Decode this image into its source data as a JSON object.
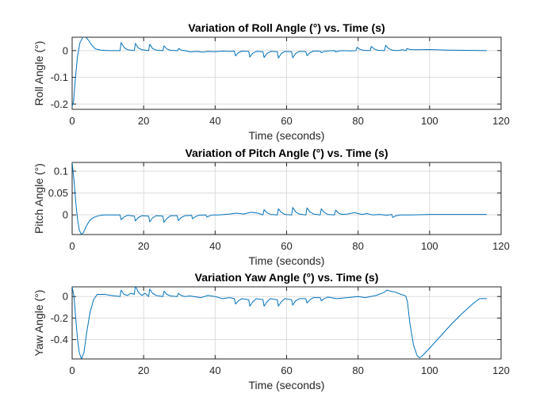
{
  "chart_data": [
    {
      "type": "line",
      "title": "Variation of Roll Angle (°) vs. Time (s)",
      "xlabel": "Time (seconds)",
      "ylabel": "Roll Angle (°)",
      "xlim": [
        0,
        120
      ],
      "ylim": [
        -0.22,
        0.05
      ],
      "xticks": [
        0,
        20,
        40,
        60,
        80,
        100,
        120
      ],
      "xtick_labels": [
        "0",
        "20",
        "40",
        "60",
        "80",
        "100",
        "120"
      ],
      "yticks": [
        -0.2,
        -0.1,
        0
      ],
      "ytick_labels": [
        "-0.2",
        "-0.1",
        "0"
      ],
      "grid": true,
      "color": "#0072BD",
      "series": [
        {
          "x": [
            0,
            0.4,
            0.8,
            1.5,
            2.2,
            3,
            3.6,
            4.5,
            5.5,
            6.5,
            8,
            10,
            13.4,
            13.7,
            14.5,
            15.5,
            17.4,
            17.7,
            18.5,
            19.5,
            21.4,
            21.7,
            22.5,
            23.5,
            25.4,
            25.7,
            26.5,
            27.5,
            29.5,
            29.8,
            30.5,
            31.5,
            33,
            35,
            36.5,
            38,
            40,
            42,
            44,
            45.4,
            45.7,
            46.5,
            47.5,
            49.4,
            49.7,
            50.5,
            51.5,
            53.4,
            53.7,
            54.5,
            55.5,
            57.4,
            57.7,
            58.5,
            59.5,
            61.4,
            61.7,
            62.5,
            63.5,
            65.4,
            65.7,
            66.5,
            67.5,
            69.4,
            69.7,
            70.5,
            71.5,
            73.4,
            73.7,
            74.5,
            75.5,
            78,
            79.4,
            79.7,
            80.5,
            81.5,
            83.4,
            83.7,
            84.5,
            85.5,
            87.4,
            87.7,
            88.5,
            89.5,
            91,
            92.5,
            93.4,
            93.7,
            94.5,
            96,
            100,
            105,
            110,
            116
          ],
          "y": [
            -0.21,
            -0.19,
            -0.12,
            -0.02,
            0.03,
            0.05,
            0.053,
            0.04,
            0.02,
            0.006,
            0.002,
            0,
            0,
            0.03,
            0.012,
            0.003,
            0,
            0.027,
            0.01,
            0.003,
            0,
            0.024,
            0.008,
            0.002,
            0,
            0.018,
            0.006,
            0.001,
            0,
            0.008,
            0.002,
            0,
            -0.005,
            -0.003,
            -0.006,
            -0.003,
            -0.004,
            -0.002,
            -0.003,
            -0.002,
            -0.02,
            -0.008,
            -0.002,
            -0.003,
            -0.024,
            -0.01,
            -0.003,
            -0.004,
            -0.026,
            -0.011,
            -0.003,
            -0.004,
            -0.028,
            -0.011,
            -0.003,
            -0.004,
            -0.027,
            -0.011,
            -0.003,
            -0.004,
            -0.019,
            -0.008,
            -0.002,
            -0.002,
            -0.008,
            -0.003,
            -0.001,
            0,
            -0.005,
            -0.002,
            0,
            -0.001,
            0,
            0.012,
            0.005,
            0.001,
            0,
            0.016,
            0.006,
            0.001,
            0,
            0.02,
            0.008,
            0.002,
            0,
            0.003,
            0,
            0.008,
            0.004,
            0.003,
            0.004,
            0.002,
            0.001,
            0
          ]
        }
      ]
    },
    {
      "type": "line",
      "title": "Variation of Pitch Angle (°) vs. Time (s)",
      "xlabel": "Time (seconds)",
      "ylabel": "Pitch Angle (°)",
      "xlim": [
        0,
        120
      ],
      "ylim": [
        -0.045,
        0.12
      ],
      "xticks": [
        0,
        20,
        40,
        60,
        80,
        100,
        120
      ],
      "xtick_labels": [
        "0",
        "20",
        "40",
        "60",
        "80",
        "100",
        "120"
      ],
      "yticks": [
        0,
        0.05,
        0.1
      ],
      "ytick_labels": [
        "0",
        "0.05",
        "0.1"
      ],
      "grid": true,
      "color": "#0072BD",
      "series": [
        {
          "x": [
            0,
            0.5,
            1,
            1.5,
            2,
            2.6,
            3.2,
            4,
            5,
            6,
            7,
            8,
            9,
            10,
            12,
            13.4,
            13.7,
            14.5,
            15.5,
            17.4,
            17.7,
            18.5,
            19.5,
            21.4,
            21.7,
            22.5,
            23.5,
            25.4,
            25.7,
            26.5,
            27.5,
            29.4,
            29.7,
            30.5,
            31.5,
            33.4,
            33.7,
            34.5,
            35.5,
            37.4,
            37.7,
            38.5,
            39.5,
            41,
            44,
            46,
            48,
            50,
            52,
            53.4,
            53.7,
            54.5,
            55.5,
            57.4,
            57.7,
            58.5,
            59.5,
            61.4,
            61.7,
            62.5,
            63.5,
            65.4,
            65.7,
            66.5,
            67.5,
            69.4,
            69.7,
            70.5,
            71.5,
            73.4,
            73.7,
            74.5,
            75.5,
            77,
            79,
            81,
            82.5,
            84,
            86,
            88,
            89.4,
            89.7,
            90.5,
            92,
            95,
            100,
            110,
            116
          ],
          "y": [
            0.12,
            0.08,
            0.03,
            -0.01,
            -0.035,
            -0.045,
            -0.04,
            -0.025,
            -0.012,
            -0.006,
            -0.003,
            -0.001,
            0,
            0,
            0,
            0,
            -0.011,
            -0.005,
            -0.001,
            -0.003,
            -0.014,
            -0.006,
            -0.002,
            -0.003,
            -0.016,
            -0.007,
            -0.002,
            -0.003,
            -0.017,
            -0.008,
            -0.002,
            -0.002,
            -0.013,
            -0.006,
            -0.002,
            -0.001,
            -0.009,
            -0.004,
            -0.001,
            0,
            -0.005,
            -0.002,
            0,
            0,
            0.002,
            0.004,
            0.002,
            0.006,
            0.004,
            0,
            0.012,
            0.005,
            0.001,
            0,
            0.014,
            0.006,
            0.001,
            0,
            0.017,
            0.007,
            0.002,
            0,
            0.016,
            0.007,
            0.002,
            0,
            0.014,
            0.006,
            0.001,
            0,
            0.011,
            0.004,
            0.001,
            0.002,
            0.005,
            0.001,
            0.003,
            0,
            0.001,
            -0.001,
            0.001,
            -0.006,
            -0.002,
            0,
            0,
            0.001,
            0.001,
            0.001
          ]
        }
      ]
    },
    {
      "type": "line",
      "title": "Variation Yaw Angle (°) vs. Time (s)",
      "xlabel": "Time (seconds)",
      "ylabel": "Yaw Angle (°)",
      "xlim": [
        0,
        120
      ],
      "ylim": [
        -0.58,
        0.09
      ],
      "xticks": [
        0,
        20,
        40,
        60,
        80,
        100,
        120
      ],
      "xtick_labels": [
        "0",
        "20",
        "40",
        "60",
        "80",
        "100",
        "120"
      ],
      "yticks": [
        -0.4,
        -0.2,
        0
      ],
      "ytick_labels": [
        "-0.4",
        "-0.2",
        "0"
      ],
      "grid": true,
      "color": "#0072BD",
      "series": [
        {
          "x": [
            0,
            0.5,
            1,
            1.5,
            2,
            2.6,
            3.3,
            4,
            5,
            6,
            7,
            9,
            11,
            13.4,
            13.7,
            14.5,
            15.5,
            16.4,
            17.4,
            17.7,
            18.5,
            19.5,
            20.4,
            21.4,
            21.7,
            22.5,
            23.5,
            25.4,
            25.7,
            26.5,
            27.5,
            29.4,
            29.7,
            30.5,
            31.5,
            33,
            36,
            38,
            40,
            42,
            44,
            45.4,
            45.7,
            46.5,
            47.5,
            49.4,
            49.7,
            50.5,
            51.5,
            53.4,
            53.7,
            54.5,
            55.5,
            57.4,
            57.7,
            58.5,
            59.5,
            61.4,
            61.7,
            62.5,
            63.5,
            65.4,
            65.7,
            66.5,
            67.5,
            69.4,
            69.7,
            70.5,
            71.5,
            74,
            77,
            80,
            82,
            85,
            87.4,
            88,
            89,
            90.5,
            92,
            93,
            93.4,
            93.8,
            94.5,
            95.5,
            96.5,
            97.2,
            98,
            100,
            103,
            106,
            109,
            112,
            114,
            116
          ],
          "y": [
            0.09,
            0,
            -0.2,
            -0.4,
            -0.52,
            -0.58,
            -0.52,
            -0.35,
            -0.15,
            -0.03,
            0.02,
            0.02,
            0.01,
            0,
            0.06,
            0.02,
            0.01,
            0.03,
            0.02,
            0.1,
            0.04,
            0.01,
            0.03,
            0,
            0.07,
            0.03,
            0.01,
            0,
            0.05,
            0.02,
            0.005,
            0,
            0.03,
            0.01,
            0,
            0.005,
            -0.01,
            0.01,
            0,
            -0.02,
            -0.01,
            -0.02,
            -0.07,
            -0.04,
            -0.02,
            -0.03,
            -0.09,
            -0.05,
            -0.02,
            -0.03,
            -0.09,
            -0.05,
            -0.02,
            -0.03,
            -0.09,
            -0.05,
            -0.02,
            -0.03,
            -0.08,
            -0.04,
            -0.02,
            -0.02,
            -0.06,
            -0.03,
            -0.01,
            -0.01,
            -0.04,
            -0.02,
            -0.005,
            -0.02,
            -0.01,
            0,
            -0.01,
            0.01,
            0.04,
            0.06,
            0.05,
            0.04,
            0.02,
            0.01,
            0,
            -0.05,
            -0.25,
            -0.45,
            -0.55,
            -0.57,
            -0.55,
            -0.48,
            -0.37,
            -0.26,
            -0.16,
            -0.07,
            -0.02,
            -0.02
          ]
        }
      ]
    }
  ]
}
